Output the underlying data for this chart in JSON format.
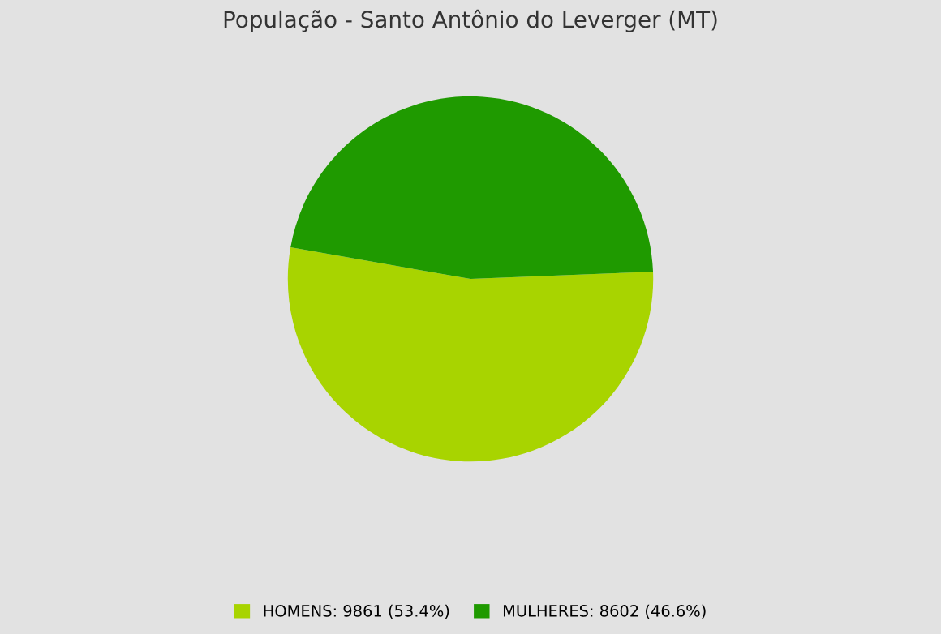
{
  "chart_data": {
    "type": "pie",
    "title": "População - Santo Antônio do Leverger (MT)",
    "categories": [
      "HOMENS: 9861 (53.4%)",
      "MULHERES: 8602 (46.6%)"
    ],
    "values": [
      9861,
      8602
    ],
    "colors": [
      "#a8d400",
      "#1f9a00"
    ],
    "legend": "bottom"
  }
}
